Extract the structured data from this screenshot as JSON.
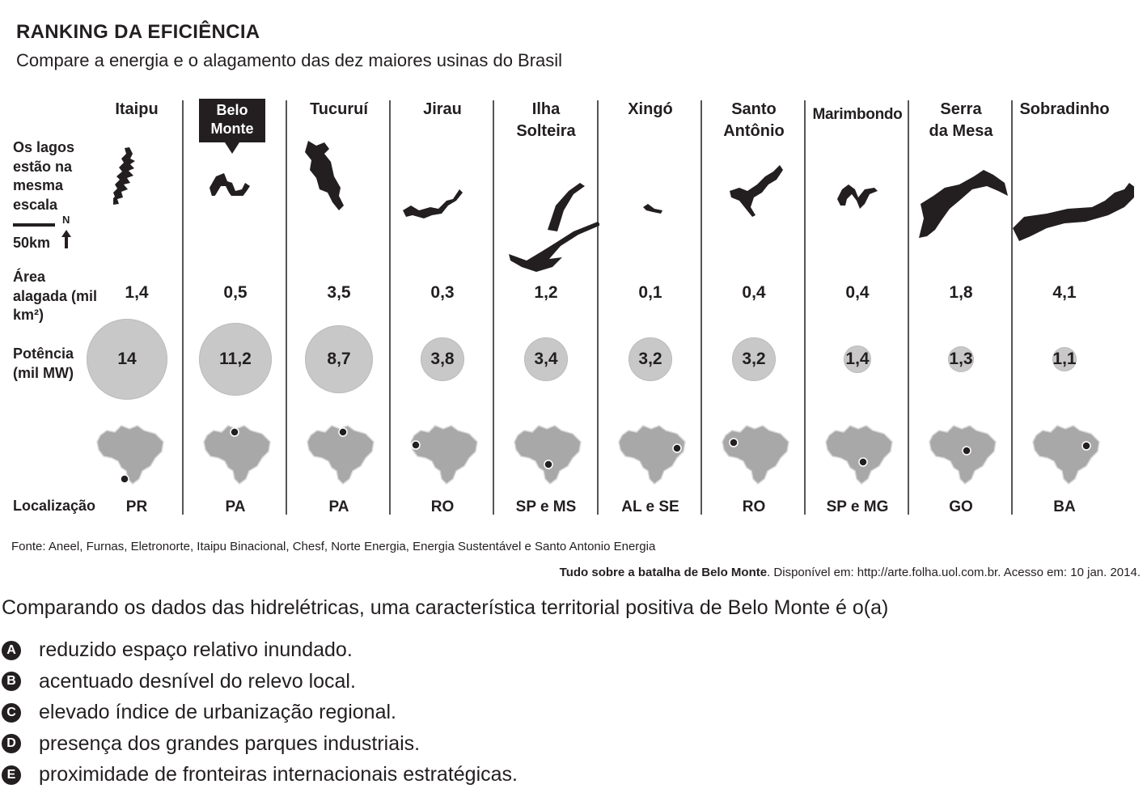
{
  "header": {
    "title": "RANKING DA EFICIÊNCIA",
    "subtitle": "Compare a energia e o alagamento das dez maiores usinas do Brasil"
  },
  "row_labels": {
    "lakes": "Os lagos estão na mesma escala",
    "scale": "50km",
    "north": "N",
    "area": "Área alagada (mil km²)",
    "power": "Potência (mil MW)",
    "location": "Localização"
  },
  "plants": [
    {
      "name": "Itaipu",
      "area": "1,4",
      "power": "14",
      "location": "PR"
    },
    {
      "name": "Belo Monte",
      "area": "0,5",
      "power": "11,2",
      "location": "PA"
    },
    {
      "name": "Tucuruí",
      "area": "3,5",
      "power": "8,7",
      "location": "PA"
    },
    {
      "name": "Jirau",
      "area": "0,3",
      "power": "3,8",
      "location": "RO"
    },
    {
      "name": "Ilha Solteira",
      "area": "1,2",
      "power": "3,4",
      "location": "SP e MS"
    },
    {
      "name": "Xingó",
      "area": "0,1",
      "power": "3,2",
      "location": "AL e SE"
    },
    {
      "name": "Santo Antônio",
      "area": "0,4",
      "power": "3,2",
      "location": "RO"
    },
    {
      "name": "Marimbondo",
      "area": "0,4",
      "power": "1,4",
      "location": "SP e MG"
    },
    {
      "name": "Serra da Mesa",
      "area": "1,8",
      "power": "1,3",
      "location": "GO"
    },
    {
      "name": "Sobradinho",
      "area": "4,1",
      "power": "1,1",
      "location": "BA"
    }
  ],
  "chart_data": {
    "type": "table",
    "title": "RANKING DA EFICIÊNCIA",
    "subtitle": "Compare a energia e o alagamento das dez maiores usinas do Brasil",
    "columns": [
      "Itaipu",
      "Belo Monte",
      "Tucuruí",
      "Jirau",
      "Ilha Solteira",
      "Xingó",
      "Santo Antônio",
      "Marimbondo",
      "Serra da Mesa",
      "Sobradinho"
    ],
    "series": [
      {
        "name": "Área alagada (mil km²)",
        "values": [
          1.4,
          0.5,
          3.5,
          0.3,
          1.2,
          0.1,
          0.4,
          0.4,
          1.8,
          4.1
        ]
      },
      {
        "name": "Potência (mil MW)",
        "values": [
          14,
          11.2,
          8.7,
          3.8,
          3.4,
          3.2,
          3.2,
          1.4,
          1.3,
          1.1
        ]
      }
    ],
    "location": [
      "PR",
      "PA",
      "PA",
      "RO",
      "SP e MS",
      "AL e SE",
      "RO",
      "SP e MG",
      "GO",
      "BA"
    ]
  },
  "source": "Fonte: Aneel, Furnas, Eletronorte, Itaipu Binacional, Chesf, Norte Energia, Energia Sustentável e Santo Antonio Energia",
  "citation": {
    "title": "Tudo sobre a batalha de Belo Monte",
    "rest": ". Disponível em: http://arte.folha.uol.com.br. Acesso em: 10 jan. 2014."
  },
  "question": "Comparando os dados das hidrelétricas, uma característica territorial positiva de Belo Monte é o(a)",
  "options": [
    {
      "letter": "A",
      "text": "reduzido espaço relativo inundado."
    },
    {
      "letter": "B",
      "text": "acentuado desnível do relevo local."
    },
    {
      "letter": "C",
      "text": "elevado índice de urbanização regional."
    },
    {
      "letter": "D",
      "text": "presença dos grandes parques industriais."
    },
    {
      "letter": "E",
      "text": "proximidade de fronteiras internacionais estratégicas."
    }
  ],
  "colors": {
    "text": "#231f20",
    "bubble": "#c8c8c8",
    "map": "#a8a8a8",
    "flag": "#231f20"
  }
}
